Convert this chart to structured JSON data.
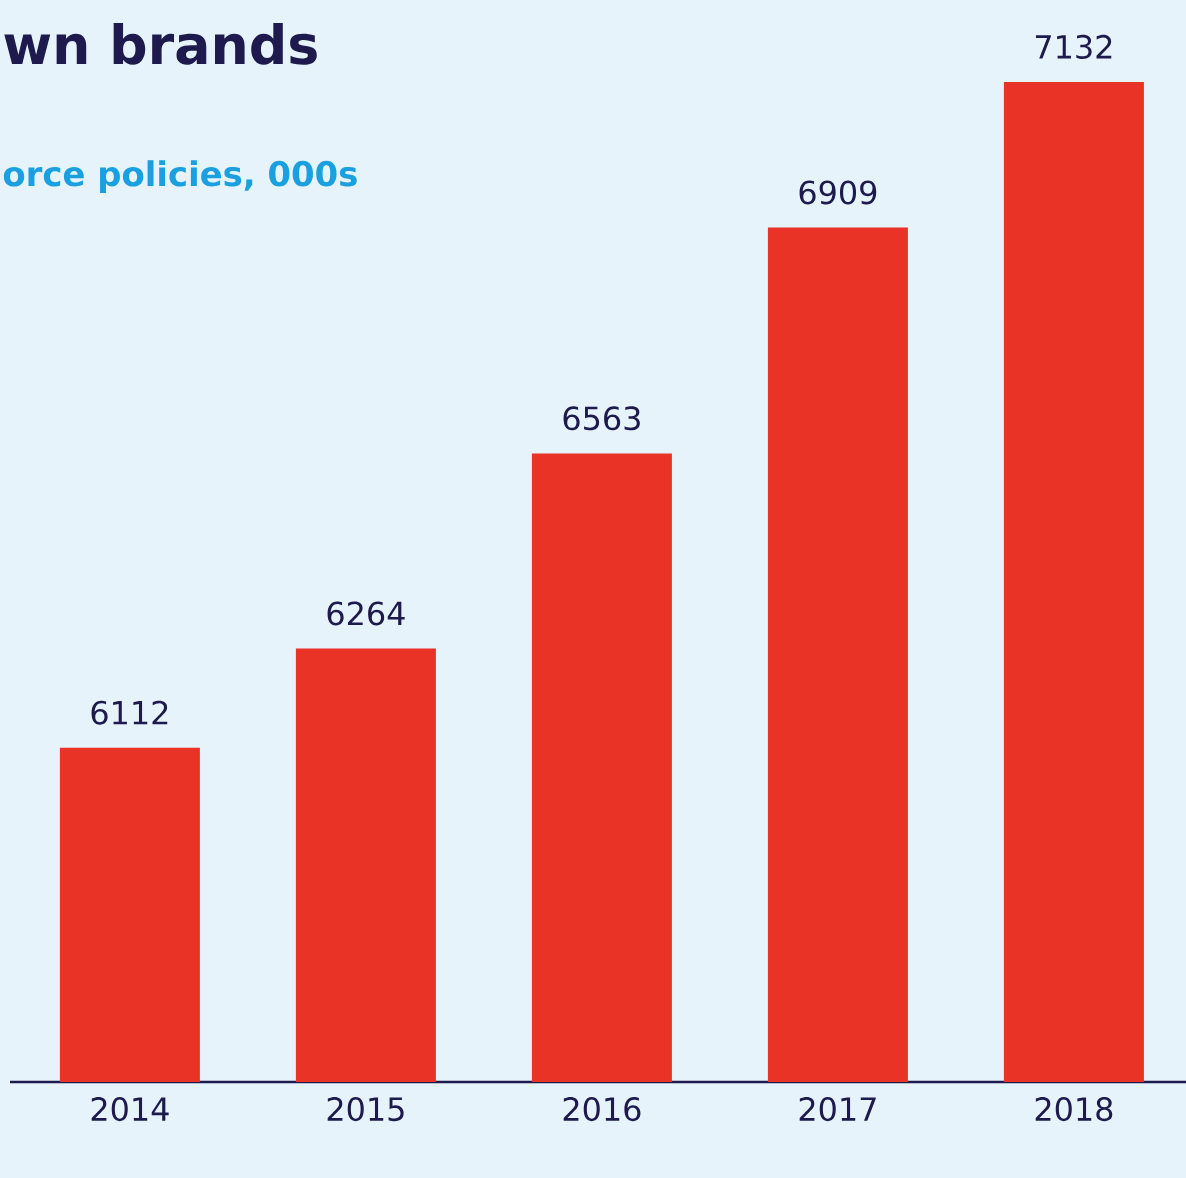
{
  "chart_data": {
    "type": "bar",
    "title": "wn brands",
    "subtitle": "orce policies, 000s",
    "categories": [
      "2014",
      "2015",
      "2016",
      "2017",
      "2018"
    ],
    "values": [
      6112,
      6264,
      6563,
      6909,
      7132
    ],
    "color": "#e83326",
    "data_labels": true,
    "ylim": [
      5600,
      7132
    ],
    "tick_labels": "x"
  }
}
